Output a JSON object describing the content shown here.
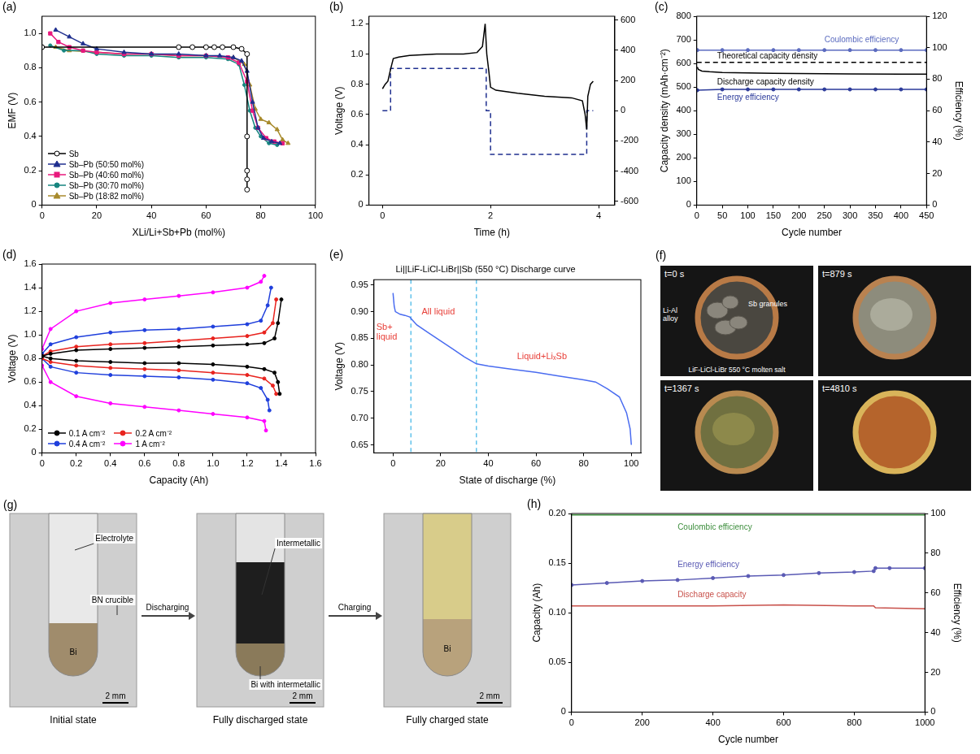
{
  "chart_data": [
    {
      "panel": "(a)",
      "type": "line",
      "x_label": "XLi/Li+Sb+Pb (mol%)",
      "y_label": "EMF (V)",
      "xlim": [
        0,
        100
      ],
      "xticks": [
        0,
        20,
        40,
        60,
        80,
        100
      ],
      "ylim": [
        0,
        1.1
      ],
      "yticks": [
        0,
        0.2,
        0.4,
        0.6,
        0.8,
        {
          "value": 1,
          "label": "1.0"
        }
      ],
      "grid": false,
      "legend": "lower left",
      "series": [
        {
          "name": "Sb",
          "color": "#000000",
          "marker": "circle-open",
          "x": [
            0,
            50,
            55,
            60,
            63,
            66,
            70,
            73,
            75,
            75,
            75,
            75,
            75
          ],
          "values": [
            0.92,
            0.92,
            0.92,
            0.92,
            0.92,
            0.92,
            0.92,
            0.91,
            0.88,
            0.4,
            0.2,
            0.15,
            0.09
          ]
        },
        {
          "name": "Sb–Pb (50:50 mol%)",
          "color": "#1f2f8f",
          "marker": "triangle",
          "x": [
            5,
            10,
            15,
            20,
            30,
            40,
            50,
            60,
            65,
            70,
            73,
            75,
            77,
            79,
            81,
            84,
            87
          ],
          "values": [
            1.02,
            0.98,
            0.94,
            0.91,
            0.89,
            0.88,
            0.88,
            0.87,
            0.87,
            0.86,
            0.84,
            0.78,
            0.6,
            0.45,
            0.39,
            0.37,
            0.36
          ]
        },
        {
          "name": "Sb–Pb (40:60 mol%)",
          "color": "#e8197d",
          "marker": "square",
          "x": [
            3,
            6,
            10,
            15,
            20,
            30,
            40,
            50,
            60,
            68,
            72,
            75,
            77,
            79,
            82,
            85,
            88
          ],
          "values": [
            1,
            0.95,
            0.92,
            0.9,
            0.89,
            0.88,
            0.88,
            0.87,
            0.87,
            0.86,
            0.83,
            0.72,
            0.55,
            0.45,
            0.39,
            0.37,
            0.36
          ]
        },
        {
          "name": "Sb–Pb (30:70 mol%)",
          "color": "#17857f",
          "marker": "circle",
          "x": [
            3,
            8,
            15,
            20,
            30,
            40,
            50,
            60,
            68,
            72,
            74,
            76,
            78,
            80,
            83,
            86
          ],
          "values": [
            0.93,
            0.9,
            0.9,
            0.88,
            0.87,
            0.87,
            0.86,
            0.86,
            0.85,
            0.82,
            0.7,
            0.55,
            0.45,
            0.4,
            0.36,
            0.35
          ]
        },
        {
          "name": "Sb–Pb (18:82 mol%)",
          "color": "#a88a2c",
          "marker": "triangle",
          "x": [
            5,
            10,
            20,
            30,
            40,
            50,
            60,
            70,
            74,
            76,
            78,
            80,
            83,
            86,
            88,
            90
          ],
          "values": [
            0.92,
            0.9,
            0.89,
            0.88,
            0.88,
            0.87,
            0.87,
            0.86,
            0.82,
            0.7,
            0.56,
            0.5,
            0.48,
            0.44,
            0.38,
            0.36
          ]
        }
      ]
    },
    {
      "panel": "(b)",
      "type": "line",
      "x_label": "Time (h)",
      "y_label": "Voltage (V)",
      "xlim": [
        -0.25,
        4.3
      ],
      "xticks": [
        0,
        2,
        4
      ],
      "ylim": [
        0,
        1.25
      ],
      "yticks": [
        0,
        0.2,
        0.4,
        0.6,
        0.8,
        {
          "value": 1,
          "label": "1.0"
        },
        1.2
      ],
      "y2lim": [
        -625,
        625
      ],
      "y2ticks": [
        -600,
        -400,
        -200,
        0,
        200,
        400,
        600
      ],
      "grid": false,
      "series": [
        {
          "color": "#000000",
          "x": [
            0,
            0.05,
            0.1,
            0.15,
            0.2,
            0.3,
            0.5,
            1,
            1.5,
            1.75,
            1.85,
            1.9,
            1.93,
            1.97,
            2,
            2.1,
            2.5,
            3,
            3.5,
            3.7,
            3.75,
            3.78,
            3.8,
            3.85,
            3.9
          ],
          "values": [
            0.77,
            0.8,
            0.82,
            0.9,
            0.97,
            0.98,
            0.99,
            1,
            1,
            1.01,
            1.05,
            1.2,
            1,
            0.88,
            0.78,
            0.76,
            0.74,
            0.72,
            0.71,
            0.69,
            0.6,
            0.5,
            0.72,
            0.8,
            0.82
          ]
        },
        {
          "color": "#1f2f8f",
          "line_style": "dashed",
          "axis": "y2",
          "x": [
            0,
            0.15,
            0.15,
            1.92,
            1.92,
            2,
            2,
            3.78,
            3.78,
            3.9
          ],
          "values": [
            0,
            0,
            280,
            280,
            0,
            0,
            -290,
            -290,
            0,
            0
          ]
        }
      ]
    },
    {
      "panel": "(c)",
      "type": "line",
      "x_label": "Cycle number",
      "y_label": "Capacity density (mAh·cm⁻²)",
      "y2_label": "Efficiency (%)",
      "xlim": [
        0,
        450
      ],
      "xticks": [
        0,
        50,
        100,
        150,
        200,
        250,
        300,
        350,
        400,
        450
      ],
      "ylim": [
        0,
        800
      ],
      "yticks": [
        0,
        100,
        200,
        300,
        400,
        500,
        600,
        700,
        800
      ],
      "y2lim": [
        0,
        120
      ],
      "y2ticks": [
        0,
        20,
        40,
        60,
        80,
        100,
        120
      ],
      "grid": false,
      "series": [
        {
          "color": "#000000",
          "x": [
            1,
            3,
            10,
            25,
            50,
            100,
            150,
            200,
            300,
            400,
            450
          ],
          "values": [
            585,
            575,
            568,
            565,
            562,
            560,
            558,
            557,
            556,
            555,
            555
          ]
        },
        {
          "color": "#000000",
          "line_style": "dashed",
          "x": [
            0,
            450
          ],
          "values": [
            605,
            605
          ]
        },
        {
          "color": "#5b6bbf",
          "marker": "circle",
          "axis": "y2",
          "x": [
            1,
            50,
            100,
            150,
            200,
            250,
            300,
            350,
            400,
            450
          ],
          "values": [
            98.5,
            98.5,
            98.5,
            98.5,
            98.5,
            98.5,
            98.5,
            98.5,
            98.5,
            98.5
          ]
        },
        {
          "color": "#2b3a9a",
          "marker": "circle",
          "axis": "y2",
          "x": [
            1,
            50,
            100,
            150,
            200,
            250,
            300,
            350,
            400,
            450
          ],
          "values": [
            73,
            73.5,
            73.5,
            73.5,
            73.5,
            73.5,
            73.5,
            73.5,
            73.5,
            73.5
          ]
        }
      ],
      "annotations": [
        {
          "text": "Coulombic efficiency",
          "x": 250,
          "y": 700,
          "color": "#5b6bbf"
        },
        {
          "text": "Theoretical capacity density",
          "x": 40,
          "y": 630,
          "color": "#000000"
        },
        {
          "text": "Discharge capacity density",
          "x": 40,
          "y": 522,
          "color": "#000000"
        },
        {
          "text": "Energy efficiency",
          "x": 40,
          "y": 455,
          "color": "#2b3a9a"
        }
      ]
    },
    {
      "panel": "(d)",
      "type": "line",
      "x_label": "Capacity (Ah)",
      "y_label": "Voltage (V)",
      "xlim": [
        0,
        1.6
      ],
      "xticks": [
        0,
        0.2,
        0.4,
        0.6,
        0.8,
        {
          "value": 1,
          "label": "1.0"
        },
        1.2,
        1.4,
        1.6
      ],
      "ylim": [
        0,
        1.6
      ],
      "yticks": [
        0,
        0.2,
        0.4,
        0.6,
        0.8,
        {
          "value": 1,
          "label": "1.0"
        },
        1.2,
        1.4,
        1.6
      ],
      "grid": false,
      "legend": "lower left",
      "series": [
        {
          "name": "0.1 A cm⁻²",
          "color": "#000000",
          "marker": "circle",
          "x": [
            0,
            0.05,
            0.2,
            0.4,
            0.6,
            0.8,
            1,
            1.2,
            1.3,
            1.36,
            1.38,
            1.4,
            0,
            0,
            0.05,
            0.2,
            0.4,
            0.6,
            0.8,
            1,
            1.2,
            1.3,
            1.36,
            1.38,
            1.39
          ],
          "values": [
            0.82,
            0.84,
            0.87,
            0.88,
            0.89,
            0.9,
            0.91,
            0.92,
            0.93,
            0.97,
            1.1,
            1.3,
            null,
            0.82,
            0.8,
            0.78,
            0.77,
            0.76,
            0.76,
            0.75,
            0.73,
            0.71,
            0.68,
            0.6,
            0.5
          ]
        },
        {
          "name": "0.2 A cm⁻²",
          "color": "#e8231e",
          "marker": "circle",
          "x": [
            0,
            0.05,
            0.2,
            0.4,
            0.6,
            0.8,
            1,
            1.2,
            1.3,
            1.35,
            1.37,
            0,
            0,
            0.05,
            0.2,
            0.4,
            0.6,
            0.8,
            1,
            1.2,
            1.3,
            1.35,
            1.37
          ],
          "values": [
            0.82,
            0.86,
            0.9,
            0.92,
            0.93,
            0.95,
            0.97,
            0.99,
            1.02,
            1.1,
            1.3,
            null,
            0.8,
            0.77,
            0.74,
            0.72,
            0.71,
            0.7,
            0.68,
            0.66,
            0.63,
            0.57,
            0.5
          ]
        },
        {
          "name": "0.4 A cm⁻²",
          "color": "#1f3fdc",
          "marker": "circle",
          "x": [
            0,
            0.05,
            0.2,
            0.4,
            0.6,
            0.8,
            1,
            1.2,
            1.28,
            1.32,
            1.34,
            0,
            0,
            0.05,
            0.2,
            0.4,
            0.6,
            0.8,
            1,
            1.2,
            1.28,
            1.32,
            1.33
          ],
          "values": [
            0.84,
            0.92,
            0.98,
            1.02,
            1.04,
            1.05,
            1.07,
            1.09,
            1.12,
            1.25,
            1.4,
            null,
            0.8,
            0.73,
            0.68,
            0.66,
            0.65,
            0.64,
            0.62,
            0.59,
            0.55,
            0.45,
            0.36
          ]
        },
        {
          "name": "1 A cm⁻²",
          "color": "#ff00ff",
          "marker": "circle",
          "x": [
            0,
            0.05,
            0.2,
            0.4,
            0.6,
            0.8,
            1,
            1.2,
            1.28,
            1.3,
            0,
            0,
            0.05,
            0.2,
            0.4,
            0.6,
            0.8,
            1,
            1.2,
            1.3,
            1.31
          ],
          "values": [
            0.88,
            1.05,
            1.2,
            1.27,
            1.3,
            1.33,
            1.36,
            1.4,
            1.45,
            1.5,
            null,
            0.74,
            0.6,
            0.48,
            0.42,
            0.39,
            0.36,
            0.33,
            0.3,
            0.27,
            0.19
          ]
        }
      ]
    },
    {
      "panel": "(e)",
      "type": "line",
      "title": "Li||LiF-LiCl-LiBr||Sb (550 °C) Discharge curve",
      "x_label": "State of discharge (%)",
      "y_label": "Voltage (V)",
      "xlim": [
        -8,
        104
      ],
      "xticks": [
        0,
        20,
        40,
        60,
        80,
        100
      ],
      "ylim": [
        0.635,
        0.96
      ],
      "yticks": [
        0.65,
        {
          "value": 0.7,
          "label": "0.70"
        },
        0.75,
        {
          "value": 0.8,
          "label": "0.80"
        },
        0.85,
        {
          "value": 0.9,
          "label": "0.90"
        },
        0.95
      ],
      "grid": false,
      "phase_boundaries": [
        7.5,
        35
      ],
      "series": [
        {
          "color": "#4a6cf0",
          "x": [
            0,
            0.5,
            1,
            3,
            5,
            7,
            8,
            10,
            15,
            20,
            25,
            30,
            35,
            40,
            50,
            60,
            70,
            80,
            85,
            90,
            95,
            98,
            99.5,
            100
          ],
          "values": [
            0.935,
            0.91,
            0.9,
            0.895,
            0.893,
            0.89,
            0.885,
            0.875,
            0.86,
            0.845,
            0.83,
            0.815,
            0.802,
            0.798,
            0.792,
            0.786,
            0.779,
            0.772,
            0.768,
            0.755,
            0.74,
            0.71,
            0.68,
            0.65
          ]
        }
      ],
      "annotations": [
        {
          "text": "Sb+ liquid",
          "x": -7,
          "y": 0.862,
          "color": "#e8413a"
        },
        {
          "text": "All liquid",
          "x": 12,
          "y": 0.9,
          "color": "#e8413a"
        },
        {
          "text": "Liquid+LiₓSb",
          "x": 52,
          "y": 0.815,
          "color": "#e8413a"
        }
      ]
    },
    {
      "panel": "(h)",
      "type": "line",
      "x_label": "Cycle number",
      "y_label": "Capacity (Ah)",
      "y2_label": "Efficiency (%)",
      "xlim": [
        0,
        1000
      ],
      "xticks": [
        0,
        200,
        400,
        600,
        800,
        1000
      ],
      "ylim": [
        0,
        0.2
      ],
      "yticks": [
        0,
        0.05,
        {
          "value": 0.1,
          "label": "0.10"
        },
        0.15,
        {
          "value": 0.2,
          "label": "0.20"
        }
      ],
      "y2lim": [
        0,
        100
      ],
      "y2ticks": [
        0,
        20,
        40,
        60,
        80,
        100
      ],
      "grid": false,
      "series": [
        {
          "color": "#3f8f3f",
          "axis": "y2",
          "x": [
            0,
            100,
            200,
            300,
            400,
            500,
            600,
            700,
            800,
            900,
            1000
          ],
          "values": [
            99.3,
            99.3,
            99.3,
            99.3,
            99.3,
            99.3,
            99.3,
            99.3,
            99.3,
            99.3,
            99.3
          ]
        },
        {
          "color": "#5a5ab4",
          "axis": "y2",
          "marker": "circle",
          "x": [
            0,
            100,
            200,
            300,
            400,
            500,
            600,
            700,
            800,
            855,
            860,
            900,
            1000
          ],
          "values": [
            64,
            65,
            66,
            66.5,
            67.5,
            68.5,
            69,
            70,
            70.5,
            71,
            72.5,
            72.5,
            72.5
          ]
        },
        {
          "color": "#c8504a",
          "x": [
            0,
            200,
            400,
            600,
            800,
            855,
            860,
            1000
          ],
          "values": [
            0.107,
            0.107,
            0.107,
            0.108,
            0.107,
            0.107,
            0.105,
            0.104
          ]
        }
      ],
      "annotations": [
        {
          "text": "Coulombic efficiency",
          "x": 300,
          "y": 0.186,
          "color": "#3f8f3f"
        },
        {
          "text": "Energy efficiency",
          "x": 300,
          "y": 0.148,
          "color": "#5a5ab4"
        },
        {
          "text": "Discharge capacity",
          "x": 300,
          "y": 0.118,
          "color": "#c8504a"
        }
      ]
    }
  ],
  "photos": [
    {
      "panel": "(f)",
      "frames": [
        {
          "time": "t=0 s",
          "labels": [
            "Sb granules",
            "Li-Al alloy",
            "LiF-LiCl-LiBr 550 °C molten salt"
          ]
        },
        {
          "time": "t=879 s"
        },
        {
          "time": "t=1367 s"
        },
        {
          "time": "t=4810 s"
        }
      ]
    },
    {
      "panel": "(g)",
      "arrows": [
        "Discharging",
        "Charging"
      ],
      "frames": [
        {
          "caption": "Initial state",
          "labels": [
            "Electrolyte",
            "BN crucible",
            "Bi"
          ],
          "scale_bar": "2 mm"
        },
        {
          "caption": "Fully discharged state",
          "labels": [
            "Intermetallic",
            "Bi with intermetallic"
          ],
          "scale_bar": "2 mm"
        },
        {
          "caption": "Fully charged state",
          "labels": [
            "Bi"
          ],
          "scale_bar": "2 mm"
        }
      ]
    }
  ]
}
